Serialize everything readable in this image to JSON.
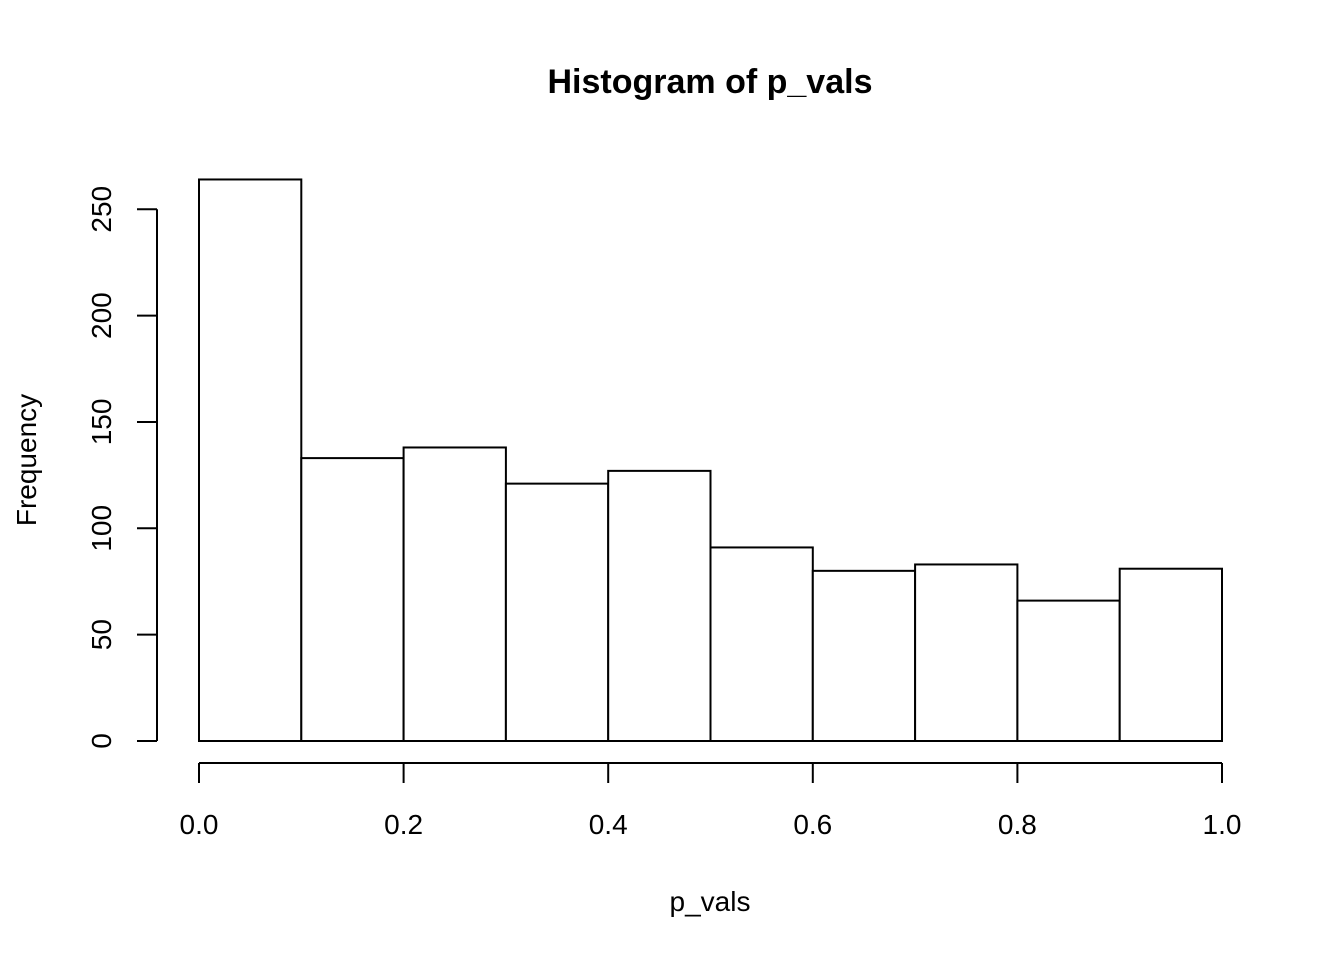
{
  "chart_data": {
    "type": "bar",
    "title": "Histogram of p_vals",
    "xlabel": "p_vals",
    "ylabel": "Frequency",
    "bins": [
      [
        0.0,
        0.1
      ],
      [
        0.1,
        0.2
      ],
      [
        0.2,
        0.3
      ],
      [
        0.3,
        0.4
      ],
      [
        0.4,
        0.5
      ],
      [
        0.5,
        0.6
      ],
      [
        0.6,
        0.7
      ],
      [
        0.7,
        0.8
      ],
      [
        0.8,
        0.9
      ],
      [
        0.9,
        1.0
      ]
    ],
    "values": [
      264,
      133,
      138,
      121,
      127,
      91,
      80,
      83,
      66,
      81
    ],
    "xlim": [
      0.0,
      1.0
    ],
    "ylim": [
      0,
      264
    ],
    "x_ticks": [
      0.0,
      0.2,
      0.4,
      0.6,
      0.8,
      1.0
    ],
    "x_tick_labels": [
      "0.0",
      "0.2",
      "0.4",
      "0.6",
      "0.8",
      "1.0"
    ],
    "y_ticks": [
      0,
      50,
      100,
      150,
      200,
      250
    ],
    "y_tick_labels": [
      "0",
      "50",
      "100",
      "150",
      "200",
      "250"
    ],
    "grid": false,
    "bar_fill": "#ffffff",
    "bar_stroke": "#000000"
  }
}
